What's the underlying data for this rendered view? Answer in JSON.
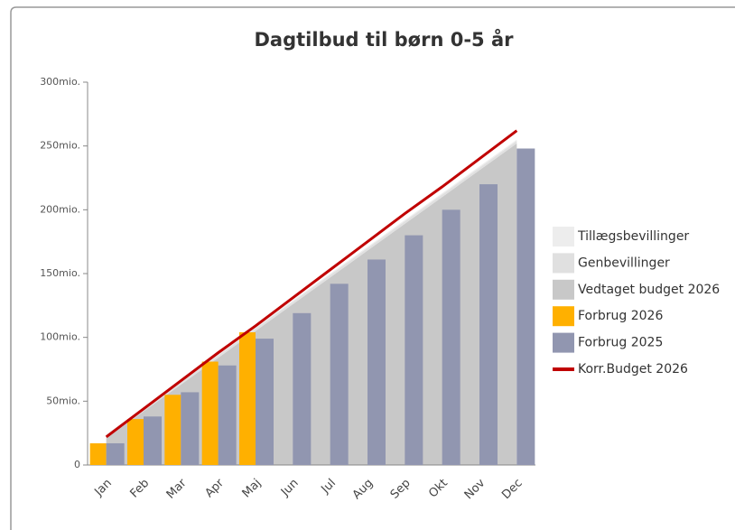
{
  "chart_data": {
    "type": "bar",
    "title": "Dagtilbud til børn 0-5 år",
    "categories": [
      "Jan",
      "Feb",
      "Mar",
      "Apr",
      "Maj",
      "Jun",
      "Jul",
      "Aug",
      "Sep",
      "Okt",
      "Nov",
      "Dec"
    ],
    "ylim": [
      0,
      300
    ],
    "yticks": [
      0,
      {
        "value": 50,
        "label": "50mio."
      },
      {
        "value": 100,
        "label": "100mio."
      },
      {
        "value": 150,
        "label": "150mio."
      },
      {
        "value": 200,
        "label": "200mio."
      },
      {
        "value": 250,
        "label": "250mio."
      },
      {
        "value": 300,
        "label": "300mio."
      }
    ],
    "legend": "right",
    "series": [
      {
        "name": "Tillægsbevillinger",
        "kind": "area",
        "color": "#ededed",
        "values": [
          1,
          1,
          1,
          1,
          1,
          1,
          1,
          1,
          1,
          1,
          1,
          1
        ]
      },
      {
        "name": "Genbevillinger",
        "kind": "area",
        "color": "#e0e0e0",
        "values": [
          2,
          2,
          2,
          2,
          2,
          2,
          2,
          2,
          2,
          2,
          2,
          2
        ]
      },
      {
        "name": "Vedtaget budget 2026",
        "kind": "area",
        "color": "#c8c8c8",
        "values": [
          21,
          42,
          63,
          84,
          105,
          126,
          147,
          168,
          189,
          210,
          231,
          252
        ]
      },
      {
        "name": "Forbrug 2026",
        "kind": "bar",
        "color": "#ffb000",
        "values": [
          17,
          36,
          55,
          81,
          104,
          null,
          null,
          null,
          null,
          null,
          null,
          null
        ]
      },
      {
        "name": "Forbrug 2025",
        "kind": "bar",
        "color": "#9196b0",
        "values": [
          17,
          38,
          57,
          78,
          99,
          119,
          142,
          161,
          180,
          200,
          220,
          248
        ]
      },
      {
        "name": "Korr.Budget 2026",
        "kind": "line",
        "color": "#c00000",
        "values": [
          22,
          44,
          66,
          88,
          109,
          131,
          153,
          175,
          197,
          218,
          240,
          262
        ]
      }
    ]
  }
}
